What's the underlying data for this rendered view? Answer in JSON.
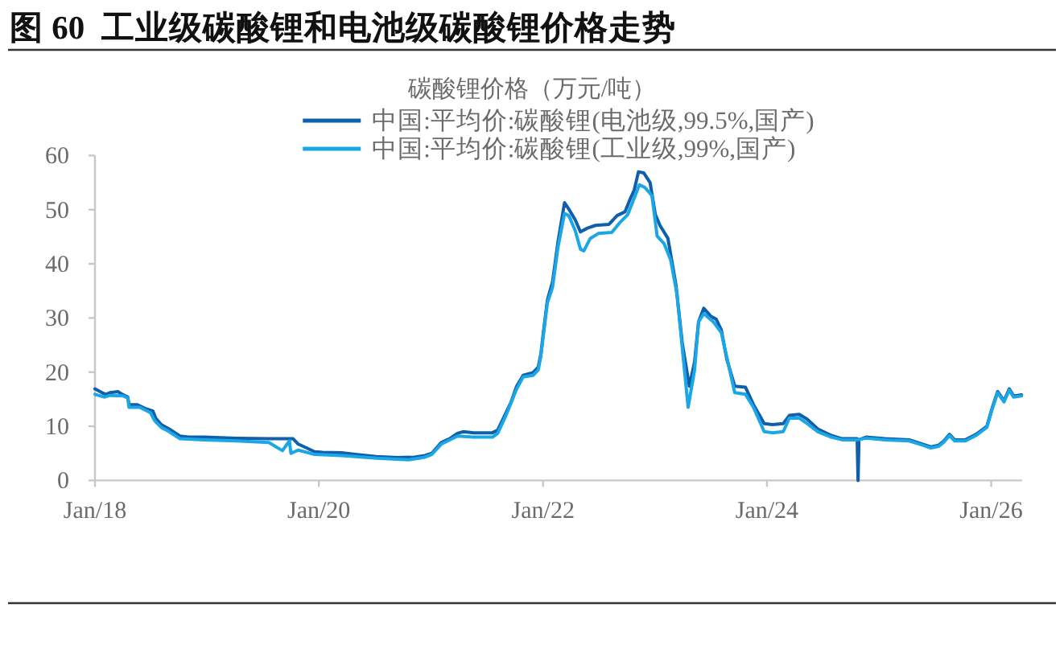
{
  "chart_data": {
    "type": "line",
    "title": "图 60  工业级碳酸锂和电池级碳酸锂价格走势",
    "subtitle": "碳酸锂价格（万元/吨）",
    "series": [
      {
        "name": "中国:平均价:碳酸锂(电池级,99.5%,国产)",
        "color": "#0f5fad",
        "x": [
          "2018-01-01",
          "2018-01-24",
          "2018-02-05",
          "2018-02-19",
          "2018-03-17",
          "2018-03-31",
          "2018-04-18",
          "2018-04-22",
          "2018-05-18",
          "2018-06-13",
          "2018-07-09",
          "2018-07-18",
          "2018-08-05",
          "2018-08-31",
          "2018-10-05",
          "2018-11-01",
          "2018-12-23",
          "2019-04-07",
          "2019-07-22",
          "2019-10-09",
          "2019-10-26",
          "2019-11-22",
          "2019-12-18",
          "2020-01-13",
          "2020-03-15",
          "2020-04-28",
          "2020-07-07",
          "2020-09-15",
          "2020-11-07",
          "2020-12-12",
          "2021-01-03",
          "2021-02-03",
          "2021-03-02",
          "2021-03-28",
          "2021-04-15",
          "2021-05-20",
          "2021-07-20",
          "2021-08-06",
          "2021-09-02",
          "2021-09-19",
          "2021-10-07",
          "2021-10-28",
          "2021-11-29",
          "2021-12-16",
          "2021-12-25",
          "2022-01-02",
          "2022-01-15",
          "2022-02-01",
          "2022-02-19",
          "2022-03-12",
          "2022-03-26",
          "2022-04-16",
          "2022-05-03",
          "2022-05-26",
          "2022-06-21",
          "2022-08-04",
          "2022-08-30",
          "2022-09-25",
          "2022-10-13",
          "2022-10-25",
          "2022-11-08",
          "2022-11-25",
          "2022-12-16",
          "2023-01-02",
          "2023-01-17",
          "2023-02-12",
          "2023-03-10",
          "2023-03-31",
          "2023-04-23",
          "2023-05-10",
          "2023-05-23",
          "2023-06-09",
          "2023-07-02",
          "2023-07-19",
          "2023-08-05",
          "2023-08-23",
          "2023-09-18",
          "2023-10-23",
          "2023-11-18",
          "2023-12-23",
          "2024-01-19",
          "2024-02-23",
          "2024-03-14",
          "2024-04-15",
          "2024-05-11",
          "2024-06-15",
          "2024-07-29",
          "2024-09-02",
          "2024-10-21",
          "2024-10-24",
          "2024-10-27",
          "2024-11-19",
          "2025-01-20",
          "2025-04-09",
          "2025-05-23",
          "2025-06-18",
          "2025-07-14",
          "2025-07-31",
          "2025-08-18",
          "2025-09-04",
          "2025-10-09",
          "2025-11-13",
          "2025-12-18",
          "2026-01-05",
          "2026-01-22",
          "2026-02-12",
          "2026-03-01",
          "2026-03-15",
          "2026-04-10"
        ],
        "values": [
          16.9,
          16.2,
          15.9,
          16.2,
          16.4,
          15.9,
          15.4,
          14.0,
          14.0,
          13.3,
          12.8,
          11.5,
          10.3,
          9.5,
          8.2,
          8.0,
          8.0,
          7.8,
          7.7,
          7.7,
          6.7,
          6.0,
          5.3,
          5.2,
          5.1,
          4.8,
          4.4,
          4.2,
          4.3,
          4.6,
          5.0,
          7.0,
          7.7,
          8.7,
          9.0,
          8.8,
          8.8,
          9.3,
          12.5,
          14.5,
          17.4,
          19.4,
          19.9,
          20.9,
          23.4,
          27.3,
          33.3,
          36.7,
          44.2,
          51.3,
          50.1,
          48.1,
          45.9,
          46.6,
          47.1,
          47.3,
          48.9,
          49.6,
          52.1,
          53.6,
          57.0,
          56.8,
          55.0,
          49.1,
          47.1,
          44.7,
          36.2,
          25.3,
          17.4,
          21.9,
          29.3,
          31.8,
          30.3,
          29.8,
          27.8,
          22.4,
          17.4,
          17.2,
          14.0,
          10.5,
          10.3,
          10.5,
          12.0,
          12.2,
          11.3,
          9.5,
          8.3,
          7.7,
          7.7,
          0,
          7.5,
          8.0,
          7.7,
          7.5,
          6.7,
          6.2,
          6.5,
          7.3,
          8.5,
          7.5,
          7.5,
          8.5,
          10.0,
          13.5,
          16.4,
          14.7,
          16.9,
          15.6,
          15.8
        ]
      },
      {
        "name": "中国:平均价:碳酸锂(工业级,99%,国产)",
        "color": "#1ba6e6",
        "x": [
          "2018-01-01",
          "2018-02-02",
          "2018-02-19",
          "2018-04-04",
          "2018-04-18",
          "2018-04-22",
          "2018-05-27",
          "2018-07-01",
          "2018-07-15",
          "2018-08-05",
          "2018-08-31",
          "2018-10-05",
          "2018-12-23",
          "2019-04-07",
          "2019-07-22",
          "2019-09-04",
          "2019-09-27",
          "2019-10-02",
          "2019-10-26",
          "2019-12-18",
          "2020-03-15",
          "2020-07-07",
          "2020-10-20",
          "2020-12-12",
          "2021-01-03",
          "2021-02-03",
          "2021-03-28",
          "2021-05-20",
          "2021-07-20",
          "2021-08-06",
          "2021-09-02",
          "2021-10-07",
          "2021-10-28",
          "2021-11-29",
          "2021-12-16",
          "2021-12-25",
          "2022-01-02",
          "2022-01-15",
          "2022-02-01",
          "2022-02-19",
          "2022-03-12",
          "2022-03-26",
          "2022-04-16",
          "2022-05-03",
          "2022-05-14",
          "2022-06-04",
          "2022-06-30",
          "2022-08-13",
          "2022-09-08",
          "2022-10-04",
          "2022-10-25",
          "2022-11-11",
          "2022-11-29",
          "2022-12-22",
          "2023-01-08",
          "2023-01-31",
          "2023-02-21",
          "2023-03-14",
          "2023-03-31",
          "2023-04-19",
          "2023-05-10",
          "2023-05-23",
          "2023-06-09",
          "2023-07-10",
          "2023-08-05",
          "2023-09-18",
          "2023-10-23",
          "2023-11-18",
          "2023-12-23",
          "2024-01-19",
          "2024-02-23",
          "2024-03-14",
          "2024-04-15",
          "2024-05-11",
          "2024-06-15",
          "2024-07-29",
          "2024-09-02",
          "2024-10-21",
          "2024-11-19",
          "2025-01-20",
          "2025-04-09",
          "2025-05-23",
          "2025-06-18",
          "2025-07-14",
          "2025-07-31",
          "2025-08-18",
          "2025-09-04",
          "2025-10-09",
          "2025-11-13",
          "2025-12-18",
          "2026-01-05",
          "2026-01-22",
          "2026-02-12",
          "2026-03-01",
          "2026-03-15",
          "2026-04-10"
        ],
        "values": [
          15.9,
          15.4,
          15.7,
          15.6,
          15.2,
          13.5,
          13.5,
          12.5,
          11.0,
          9.8,
          9.0,
          7.7,
          7.5,
          7.3,
          7.0,
          5.5,
          7.3,
          5.0,
          5.6,
          4.8,
          4.6,
          4.1,
          3.8,
          4.3,
          4.8,
          6.7,
          8.2,
          8.0,
          8.0,
          8.7,
          12.0,
          16.9,
          19.1,
          19.4,
          20.4,
          23.0,
          26.8,
          32.8,
          35.7,
          43.2,
          49.3,
          48.9,
          46.1,
          42.7,
          42.4,
          44.7,
          45.6,
          45.8,
          47.6,
          49.1,
          52.1,
          54.6,
          54.1,
          52.6,
          45.1,
          43.7,
          40.7,
          34.3,
          24.4,
          13.5,
          20.4,
          29.3,
          30.8,
          29.3,
          27.3,
          16.2,
          15.9,
          13.5,
          9.0,
          8.8,
          9.0,
          11.5,
          11.5,
          10.5,
          9.0,
          8.0,
          7.5,
          7.5,
          7.8,
          7.5,
          7.3,
          6.5,
          6.0,
          6.3,
          7.1,
          8.3,
          7.3,
          7.3,
          8.3,
          9.8,
          13.3,
          16.2,
          14.5,
          16.7,
          15.4,
          15.6
        ]
      }
    ],
    "xlim": [
      "2018-01-01",
      "2026-04-12"
    ],
    "xticks": [
      {
        "value": "2018-01-01",
        "label": "Jan/18"
      },
      {
        "value": "2020-01-01",
        "label": "Jan/20"
      },
      {
        "value": "2022-01-01",
        "label": "Jan/22"
      },
      {
        "value": "2024-01-01",
        "label": "Jan/24"
      },
      {
        "value": "2026-01-01",
        "label": "Jan/26"
      }
    ],
    "ylim": [
      0,
      60
    ],
    "yticks": [
      0,
      10,
      20,
      30,
      40,
      50,
      60
    ],
    "grid": false,
    "legend": "top",
    "marker": "none",
    "line_style": "solid"
  }
}
